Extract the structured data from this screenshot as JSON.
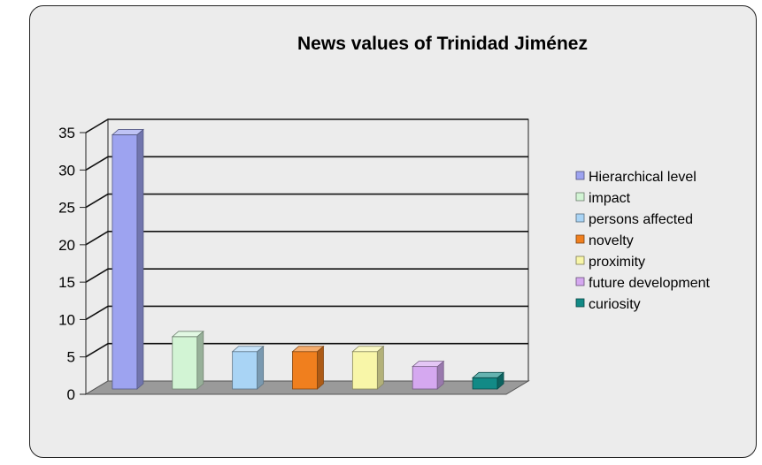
{
  "chart_data": {
    "type": "bar",
    "title": "News values of Trinidad Jiménez",
    "xlabel": "",
    "ylabel": "",
    "ylim": [
      0,
      35
    ],
    "yticks": [
      0,
      5,
      10,
      15,
      20,
      25,
      30,
      35
    ],
    "grid": true,
    "legend_position": "right",
    "style": "3d",
    "categories": [
      "Hierarchical level",
      "impact",
      "persons affected",
      "novelty",
      "proximity",
      "future development",
      "curiosity"
    ],
    "values": [
      34,
      7,
      5,
      5,
      5,
      3,
      1.5
    ],
    "colors": [
      "#9da3f0",
      "#d2f4d4",
      "#a9d4f5",
      "#f07f1e",
      "#f8f6a8",
      "#d5a8f0",
      "#128a86"
    ]
  }
}
